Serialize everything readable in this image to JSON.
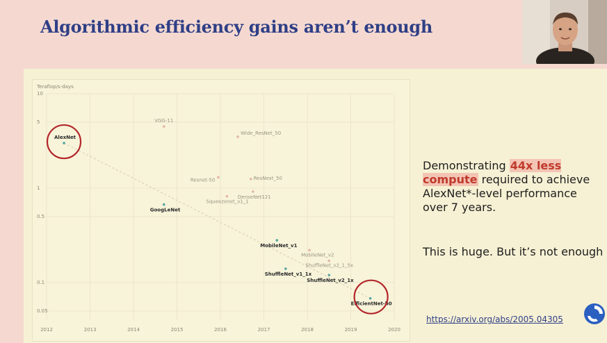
{
  "slide": {
    "title": "Algorithmic efficiency gains aren’t enough",
    "text1_prefix": "Demonstrating ",
    "text1_highlight": "44x less compute",
    "text1_suffix": " required to achieve AlexNet*-level performance over 7 years.",
    "text2": "This is huge. But it’s not enough",
    "link": "https://arxiv.org/abs/2005.04305",
    "colors": {
      "title": "#2f3f86",
      "highlight_bg": "#f3c4b4",
      "highlight_text": "#c0392b",
      "circle": "#b3262b"
    }
  },
  "chart_data": {
    "type": "scatter",
    "ylabel": "Teraflop/s-days",
    "y_scale": "log",
    "ylim": [
      0.04,
      10
    ],
    "xlim": [
      2012,
      2020
    ],
    "y_ticks": [
      10,
      5,
      1,
      0.5,
      0.1,
      0.05
    ],
    "y_tick_labels": [
      "10",
      "5",
      "1",
      "0.5",
      "0.1",
      "0.05"
    ],
    "x_ticks": [
      2012,
      2013,
      2014,
      2015,
      2016,
      2017,
      2018,
      2019,
      2020
    ],
    "x_tick_labels": [
      "2012",
      "2013",
      "2014",
      "2015",
      "2016",
      "2017",
      "2018",
      "2019",
      "2020"
    ],
    "grid": true,
    "points": [
      {
        "label": "AlexNet",
        "x": 2012.4,
        "y": 3.0,
        "frontier": true,
        "circled": true
      },
      {
        "label": "VGG-11",
        "x": 2014.7,
        "y": 4.5,
        "frontier": false
      },
      {
        "label": "Wide_ResNet_50",
        "x": 2016.4,
        "y": 3.5,
        "frontier": false
      },
      {
        "label": "Resnet-50",
        "x": 2015.95,
        "y": 1.3,
        "frontier": false
      },
      {
        "label": "ResNext_50",
        "x": 2016.7,
        "y": 1.25,
        "frontier": false
      },
      {
        "label": "DenseNet121",
        "x": 2016.75,
        "y": 0.92,
        "frontier": false
      },
      {
        "label": "Squeezenet_v1_1",
        "x": 2016.15,
        "y": 0.82,
        "frontier": false
      },
      {
        "label": "GoogLeNet",
        "x": 2014.7,
        "y": 0.67,
        "frontier": true
      },
      {
        "label": "MobileNet_v1",
        "x": 2017.3,
        "y": 0.28,
        "frontier": true
      },
      {
        "label": "MobileNet_v2",
        "x": 2018.05,
        "y": 0.22,
        "frontier": false
      },
      {
        "label": "ShuffleNet_v2_1_5x",
        "x": 2018.5,
        "y": 0.17,
        "frontier": false
      },
      {
        "label": "ShuffleNet_v1_1x",
        "x": 2017.5,
        "y": 0.14,
        "frontier": true
      },
      {
        "label": "ShuffleNet_v2_1x",
        "x": 2018.5,
        "y": 0.12,
        "frontier": true
      },
      {
        "label": "EfficientNet-b0",
        "x": 2019.45,
        "y": 0.068,
        "frontier": true,
        "circled": true
      }
    ],
    "trend": "dashed line from AlexNet to EfficientNet-b0"
  }
}
